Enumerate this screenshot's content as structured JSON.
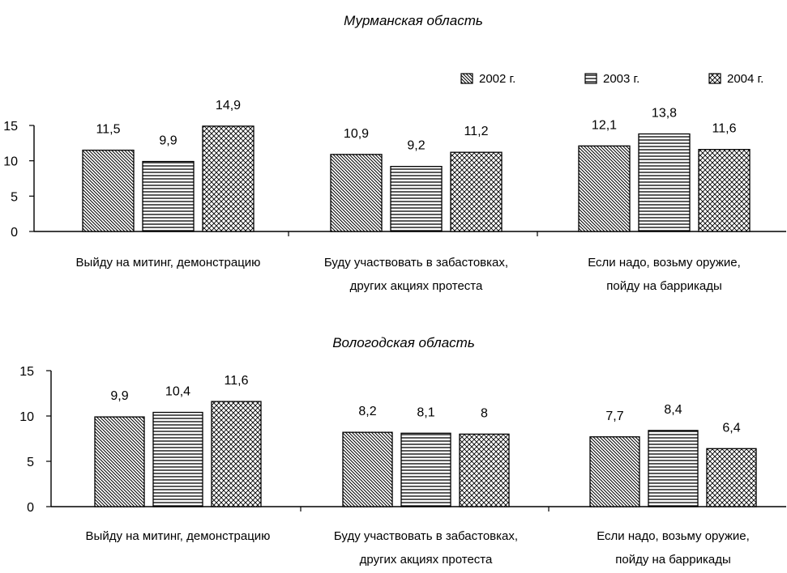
{
  "chart_data": [
    {
      "type": "bar",
      "title": "Мурманская область",
      "categories": [
        [
          "Выйду на митинг, демонстрацию"
        ],
        [
          "Буду участвовать в забастовках,",
          "других акциях протеста"
        ],
        [
          "Если надо, возьму оружие,",
          "пойду на баррикады"
        ]
      ],
      "series": [
        {
          "name": "2002 г.",
          "values": [
            11.5,
            10.9,
            12.1
          ],
          "labels": [
            "11,5",
            "10,9",
            "12,1"
          ],
          "pattern": "diagonal"
        },
        {
          "name": "2003 г.",
          "values": [
            9.9,
            9.2,
            13.8
          ],
          "labels": [
            "9,9",
            "9,2",
            "13,8"
          ],
          "pattern": "horizontal"
        },
        {
          "name": "2004 г.",
          "values": [
            14.9,
            11.2,
            11.6
          ],
          "labels": [
            "14,9",
            "11,2",
            "11,6"
          ],
          "pattern": "crosshatch"
        }
      ],
      "yticks": [
        "0",
        "5",
        "10",
        "15"
      ],
      "ylim": [
        0,
        15
      ],
      "legend": "top-right",
      "grid": false
    },
    {
      "type": "bar",
      "title": "Вологодская область",
      "categories": [
        [
          "Выйду на митинг, демонстрацию"
        ],
        [
          "Буду участвовать в забастовках,",
          "других акциях протеста"
        ],
        [
          "Если надо, возьму оружие,",
          "пойду на баррикады"
        ]
      ],
      "series": [
        {
          "name": "2002 г.",
          "values": [
            9.9,
            8.2,
            7.7
          ],
          "labels": [
            "9,9",
            "8,2",
            "7,7"
          ],
          "pattern": "diagonal"
        },
        {
          "name": "2003 г.",
          "values": [
            10.4,
            8.1,
            8.4
          ],
          "labels": [
            "10,4",
            "8,1",
            "8,4"
          ],
          "pattern": "horizontal"
        },
        {
          "name": "2004 г.",
          "values": [
            11.6,
            8.0,
            6.4
          ],
          "labels": [
            "11,6",
            "8",
            "6,4"
          ],
          "pattern": "crosshatch"
        }
      ],
      "yticks": [
        "0",
        "5",
        "10",
        "15"
      ],
      "ylim": [
        0,
        15
      ],
      "legend": "none",
      "grid": false
    }
  ],
  "colors": {
    "ink": "#000000",
    "background": "#ffffff"
  }
}
